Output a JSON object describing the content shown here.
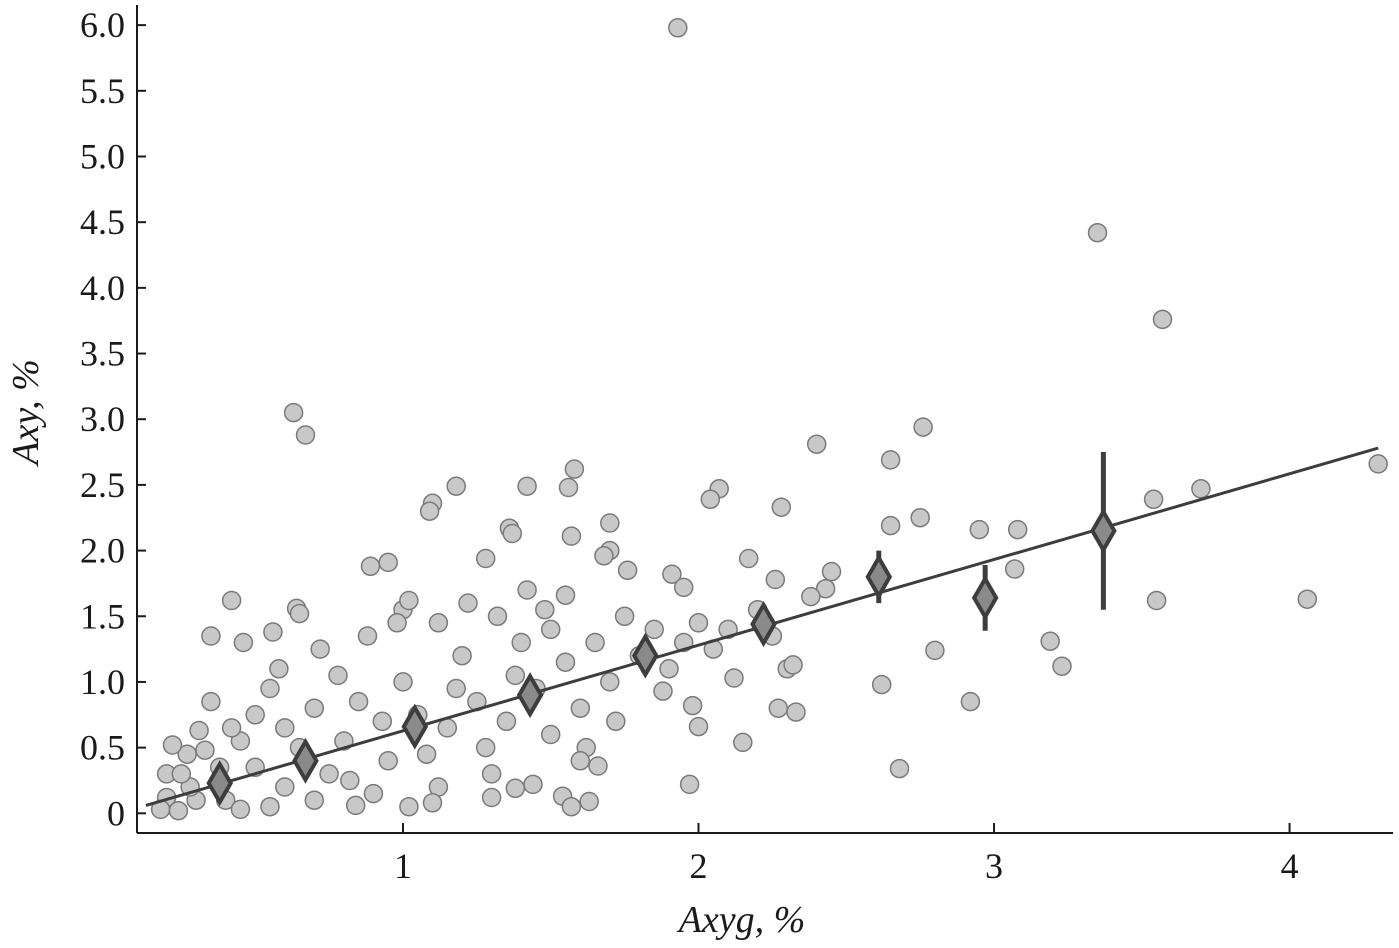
{
  "chart_data": {
    "type": "scatter",
    "title": "",
    "xlabel": "Axyg, %",
    "ylabel": "Axy, %",
    "xlim": [
      0.1,
      4.35
    ],
    "ylim": [
      -0.15,
      6.1
    ],
    "xticks": [
      {
        "value": 1,
        "label": "1"
      },
      {
        "value": 2,
        "label": "2"
      },
      {
        "value": 3,
        "label": "3"
      },
      {
        "value": 4,
        "label": "4"
      }
    ],
    "yticks": [
      {
        "value": 0,
        "label": "0"
      },
      {
        "value": 0.5,
        "label": "0.5"
      },
      {
        "value": 1.0,
        "label": "1.0"
      },
      {
        "value": 1.5,
        "label": "1.5"
      },
      {
        "value": 2.0,
        "label": "2.0"
      },
      {
        "value": 2.5,
        "label": "2.5"
      },
      {
        "value": 3.0,
        "label": "3.0"
      },
      {
        "value": 3.5,
        "label": "3.5"
      },
      {
        "value": 4.0,
        "label": "4.0"
      },
      {
        "value": 4.5,
        "label": "4.5"
      },
      {
        "value": 5.0,
        "label": "5.0"
      },
      {
        "value": 5.5,
        "label": "5.5"
      },
      {
        "value": 6.0,
        "label": "6.0"
      }
    ],
    "grid": false,
    "colors": {
      "points_fill": "#c8c8c8",
      "points_stroke": "#7a7a7a",
      "means_fill": "#8a8a8a",
      "means_stroke": "#3d3d3d",
      "fit_line": "#3d3d3d",
      "axis": "#1a1a1a"
    },
    "series": [
      {
        "kind": "scatter",
        "points": [
          [
            1.93,
            5.98
          ],
          [
            3.35,
            4.42
          ],
          [
            3.57,
            3.76
          ],
          [
            0.63,
            3.05
          ],
          [
            0.67,
            2.88
          ],
          [
            2.76,
            2.94
          ],
          [
            2.4,
            2.81
          ],
          [
            2.65,
            2.69
          ],
          [
            4.3,
            2.66
          ],
          [
            1.58,
            2.62
          ],
          [
            1.18,
            2.49
          ],
          [
            1.42,
            2.49
          ],
          [
            1.56,
            2.48
          ],
          [
            2.07,
            2.47
          ],
          [
            3.7,
            2.47
          ],
          [
            2.04,
            2.39
          ],
          [
            3.54,
            2.39
          ],
          [
            1.1,
            2.36
          ],
          [
            1.09,
            2.3
          ],
          [
            2.28,
            2.33
          ],
          [
            2.75,
            2.25
          ],
          [
            2.65,
            2.19
          ],
          [
            1.36,
            2.17
          ],
          [
            1.7,
            2.21
          ],
          [
            2.95,
            2.16
          ],
          [
            3.08,
            2.16
          ],
          [
            1.57,
            2.11
          ],
          [
            1.37,
            2.13
          ],
          [
            1.7,
            2.0
          ],
          [
            1.68,
            1.96
          ],
          [
            1.76,
            1.85
          ],
          [
            2.17,
            1.94
          ],
          [
            1.28,
            1.94
          ],
          [
            0.95,
            1.91
          ],
          [
            0.89,
            1.88
          ],
          [
            1.91,
            1.82
          ],
          [
            2.45,
            1.84
          ],
          [
            3.07,
            1.86
          ],
          [
            1.95,
            1.72
          ],
          [
            2.26,
            1.78
          ],
          [
            2.43,
            1.71
          ],
          [
            0.42,
            1.62
          ],
          [
            3.55,
            1.62
          ],
          [
            4.06,
            1.63
          ],
          [
            0.64,
            1.56
          ],
          [
            0.65,
            1.52
          ],
          [
            1.0,
            1.55
          ],
          [
            1.55,
            1.66
          ],
          [
            2.38,
            1.65
          ],
          [
            0.35,
            1.35
          ],
          [
            0.56,
            1.38
          ],
          [
            0.46,
            1.3
          ],
          [
            2.8,
            1.24
          ],
          [
            3.19,
            1.31
          ],
          [
            3.23,
            1.12
          ],
          [
            2.3,
            1.1
          ],
          [
            2.32,
            1.13
          ],
          [
            2.12,
            1.03
          ],
          [
            1.88,
            0.93
          ],
          [
            1.98,
            0.82
          ],
          [
            2.27,
            0.8
          ],
          [
            2.33,
            0.77
          ],
          [
            2.62,
            0.98
          ],
          [
            2.92,
            0.85
          ],
          [
            2.0,
            0.66
          ],
          [
            2.15,
            0.54
          ],
          [
            1.97,
            0.22
          ],
          [
            2.68,
            0.34
          ],
          [
            1.63,
            0.09
          ],
          [
            1.54,
            0.13
          ],
          [
            1.57,
            0.05
          ],
          [
            1.38,
            0.19
          ],
          [
            1.02,
            0.05
          ],
          [
            0.35,
            0.85
          ],
          [
            0.31,
            0.63
          ],
          [
            0.27,
            0.45
          ],
          [
            0.22,
            0.52
          ],
          [
            0.2,
            0.3
          ],
          [
            0.2,
            0.12
          ],
          [
            0.18,
            0.03
          ],
          [
            0.24,
            0.02
          ],
          [
            0.3,
            0.1
          ],
          [
            0.28,
            0.2
          ],
          [
            0.4,
            0.1
          ],
          [
            0.45,
            0.03
          ],
          [
            0.55,
            0.05
          ],
          [
            0.38,
            0.35
          ],
          [
            0.45,
            0.55
          ],
          [
            0.5,
            0.75
          ],
          [
            0.55,
            0.95
          ],
          [
            0.5,
            0.35
          ],
          [
            0.6,
            0.2
          ],
          [
            0.7,
            0.1
          ],
          [
            0.75,
            0.3
          ],
          [
            0.65,
            0.5
          ],
          [
            0.7,
            0.8
          ],
          [
            0.8,
            0.55
          ],
          [
            0.85,
            0.85
          ],
          [
            0.82,
            0.25
          ],
          [
            0.9,
            0.15
          ],
          [
            0.95,
            0.4
          ],
          [
            0.93,
            0.7
          ],
          [
            1.0,
            1.0
          ],
          [
            1.05,
            0.75
          ],
          [
            1.08,
            0.45
          ],
          [
            1.12,
            0.2
          ],
          [
            1.15,
            0.65
          ],
          [
            1.18,
            0.95
          ],
          [
            1.2,
            1.2
          ],
          [
            1.25,
            0.85
          ],
          [
            1.28,
            0.5
          ],
          [
            1.3,
            0.3
          ],
          [
            1.35,
            0.7
          ],
          [
            1.38,
            1.05
          ],
          [
            1.4,
            1.3
          ],
          [
            1.45,
            0.95
          ],
          [
            1.5,
            0.6
          ],
          [
            1.5,
            1.4
          ],
          [
            1.55,
            1.15
          ],
          [
            1.6,
            0.8
          ],
          [
            1.62,
            0.5
          ],
          [
            1.65,
            1.3
          ],
          [
            1.7,
            1.0
          ],
          [
            1.72,
            0.7
          ],
          [
            1.75,
            1.5
          ],
          [
            1.8,
            1.2
          ],
          [
            1.85,
            1.4
          ],
          [
            1.9,
            1.1
          ],
          [
            1.95,
            1.3
          ],
          [
            2.0,
            1.45
          ],
          [
            2.05,
            1.25
          ],
          [
            2.1,
            1.4
          ],
          [
            2.2,
            1.55
          ],
          [
            2.25,
            1.35
          ],
          [
            0.78,
            1.05
          ],
          [
            0.72,
            1.25
          ],
          [
            0.88,
            1.35
          ],
          [
            0.98,
            1.45
          ],
          [
            1.02,
            1.62
          ],
          [
            1.12,
            1.45
          ],
          [
            1.22,
            1.6
          ],
          [
            1.32,
            1.5
          ],
          [
            1.42,
            1.7
          ],
          [
            1.48,
            1.55
          ],
          [
            0.6,
            0.65
          ],
          [
            0.58,
            1.1
          ],
          [
            0.42,
            0.65
          ],
          [
            0.33,
            0.48
          ],
          [
            0.25,
            0.3
          ],
          [
            1.6,
            0.4
          ],
          [
            1.66,
            0.36
          ],
          [
            1.44,
            0.22
          ],
          [
            1.3,
            0.12
          ],
          [
            1.1,
            0.08
          ],
          [
            0.84,
            0.06
          ]
        ]
      },
      {
        "kind": "means",
        "points": [
          [
            0.38,
            0.23,
            0.03
          ],
          [
            0.67,
            0.4,
            0.03
          ],
          [
            1.04,
            0.66,
            0.03
          ],
          [
            1.43,
            0.9,
            0.03
          ],
          [
            1.82,
            1.2,
            0.03
          ],
          [
            2.22,
            1.44,
            0.05
          ],
          [
            2.61,
            1.8,
            0.2
          ],
          [
            2.97,
            1.64,
            0.25
          ],
          [
            3.37,
            2.15,
            0.6
          ]
        ]
      },
      {
        "kind": "fit",
        "points": [
          [
            0.13,
            0.06
          ],
          [
            4.3,
            2.78
          ]
        ]
      }
    ]
  }
}
